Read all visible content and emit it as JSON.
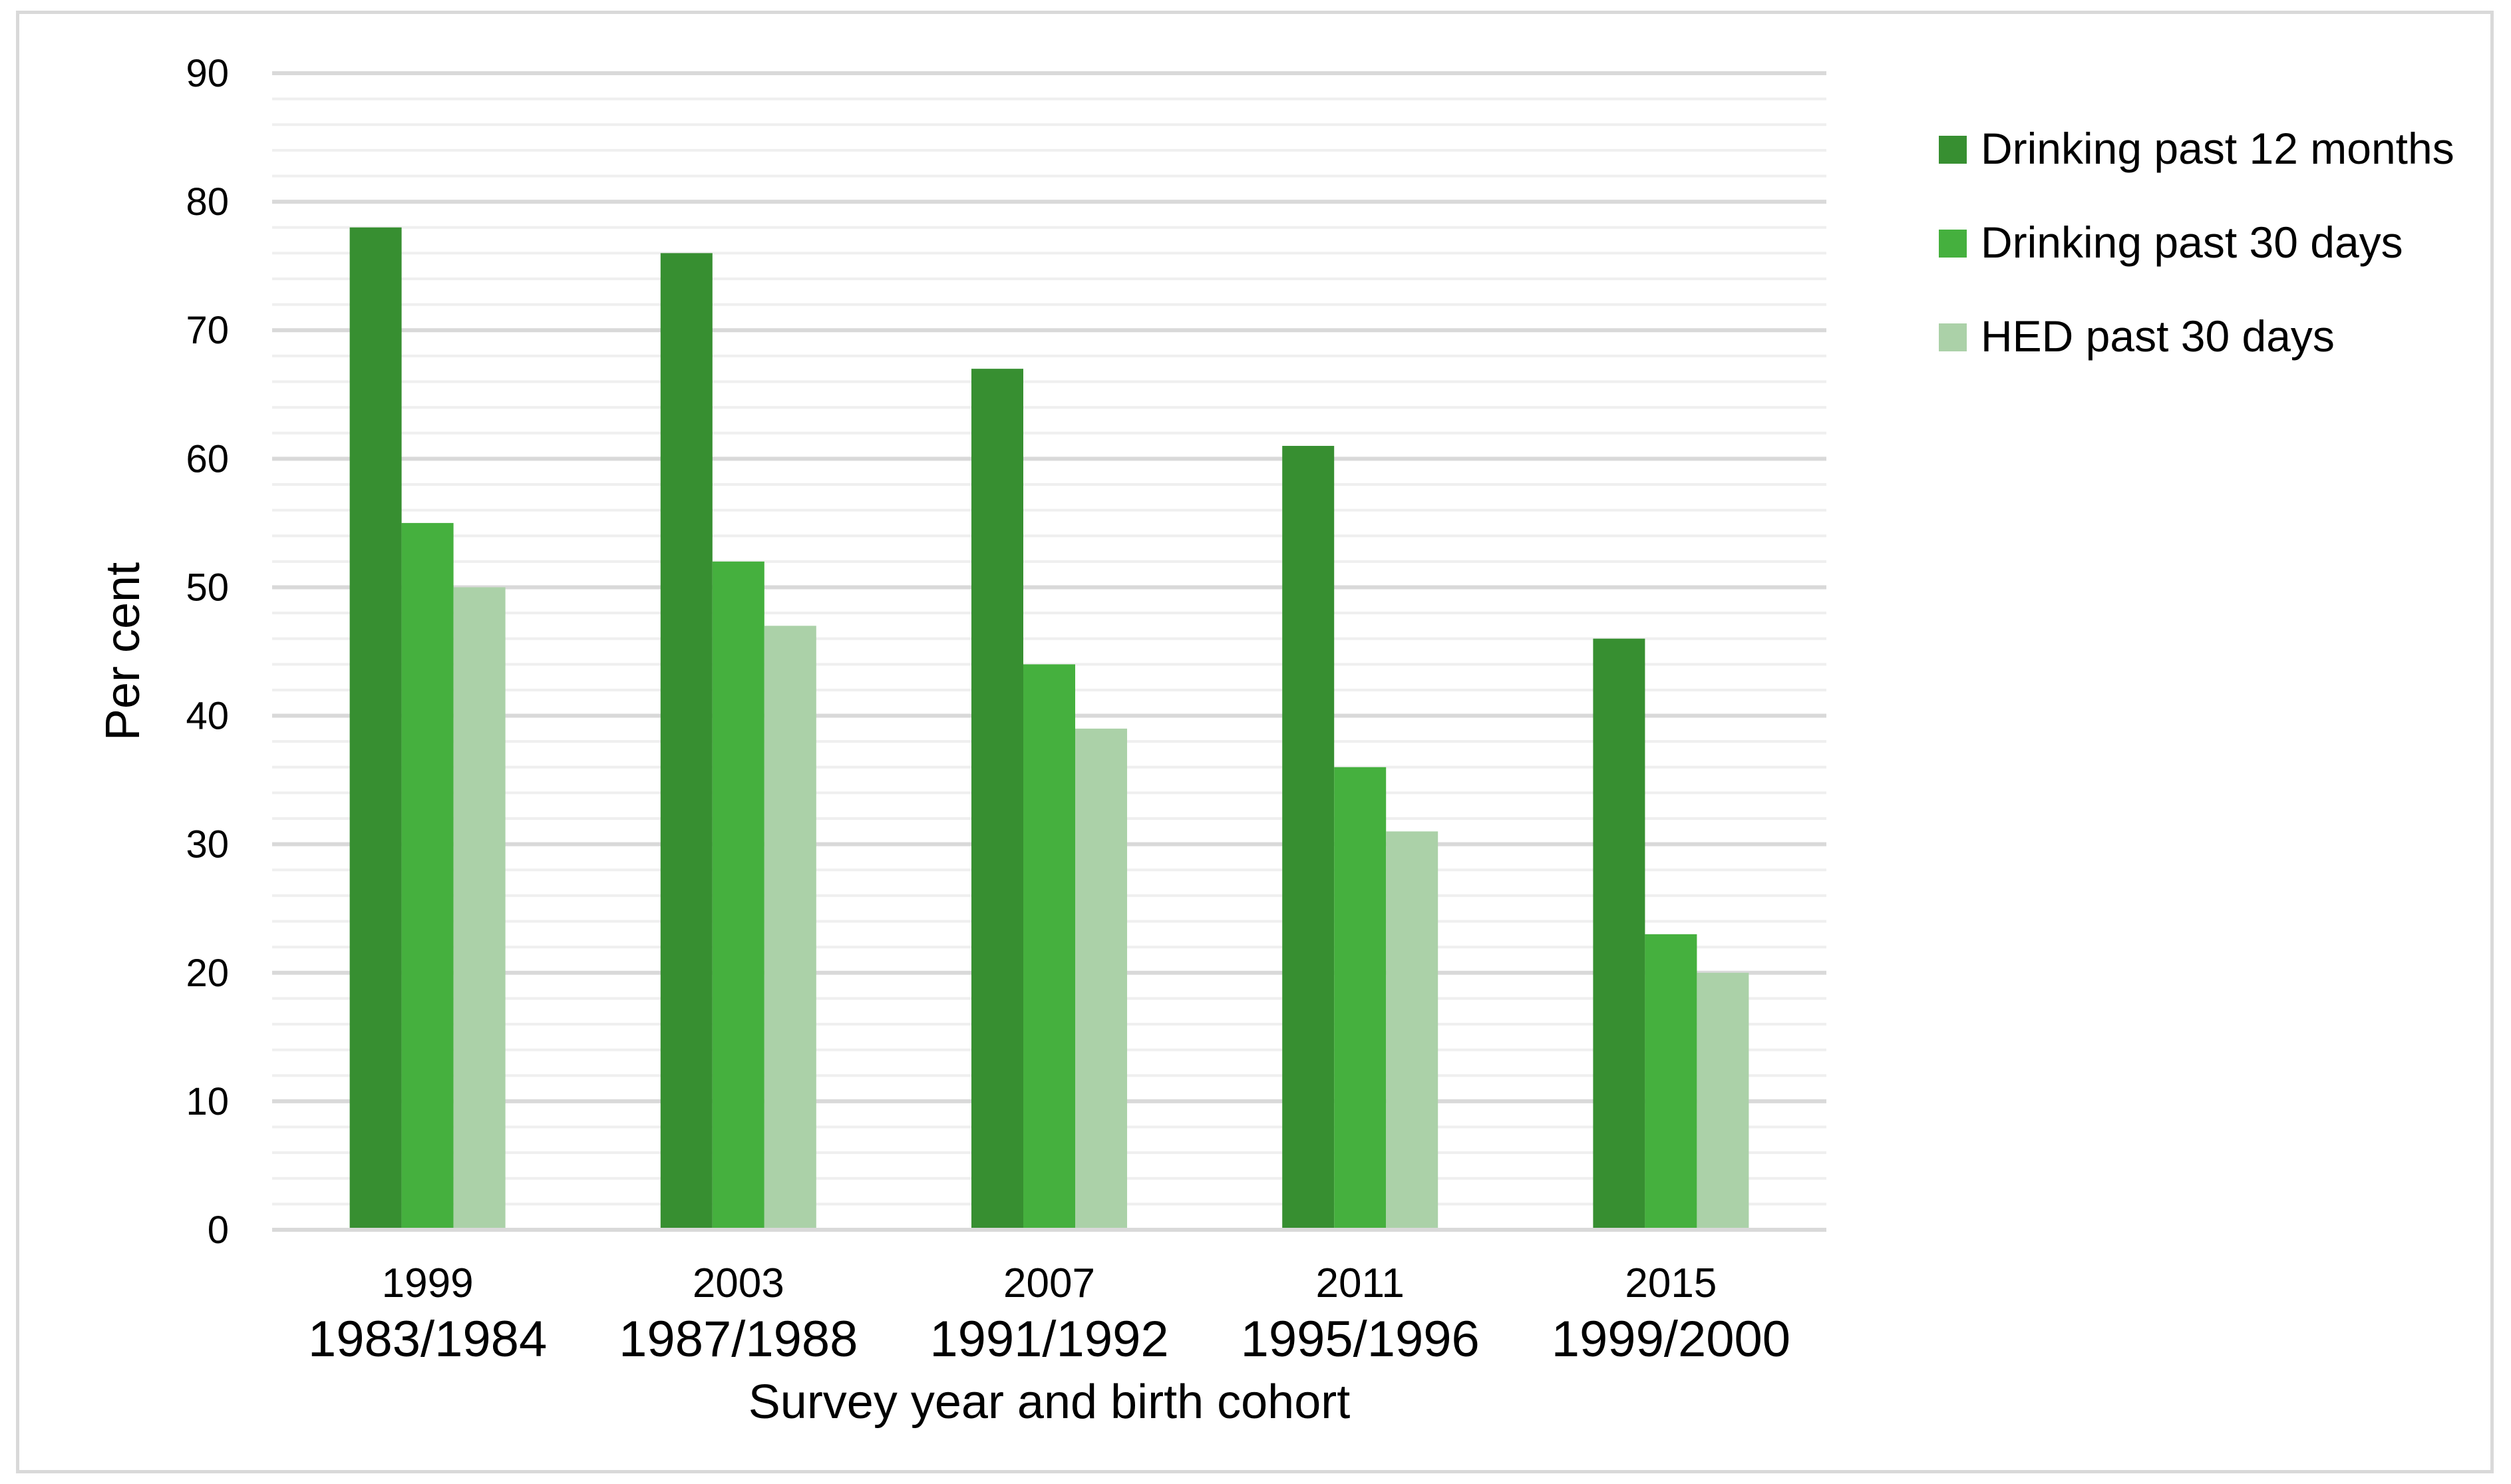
{
  "chart_data": {
    "type": "bar",
    "title": "",
    "xlabel": "Survey year and birth cohort",
    "ylabel": "Per cent",
    "ylim": [
      0,
      90
    ],
    "yticks": [
      0,
      10,
      20,
      30,
      40,
      50,
      60,
      70,
      80,
      90
    ],
    "grid": true,
    "legend_position": "right",
    "categories": [
      {
        "year": "1999",
        "cohort": "1983/1984"
      },
      {
        "year": "2003",
        "cohort": "1987/1988"
      },
      {
        "year": "2007",
        "cohort": "1991/1992"
      },
      {
        "year": "2011",
        "cohort": "1995/1996"
      },
      {
        "year": "2015",
        "cohort": "1999/2000"
      }
    ],
    "series": [
      {
        "name": "Drinking past 12 months",
        "color": "#378f31",
        "values": [
          78,
          76,
          67,
          61,
          46
        ]
      },
      {
        "name": "Drinking past 30 days",
        "color": "#45b03e",
        "values": [
          55,
          52,
          44,
          36,
          23
        ]
      },
      {
        "name": "HED past 30 days",
        "color": "#abd1a8",
        "values": [
          50,
          47,
          39,
          31,
          20
        ]
      }
    ]
  }
}
